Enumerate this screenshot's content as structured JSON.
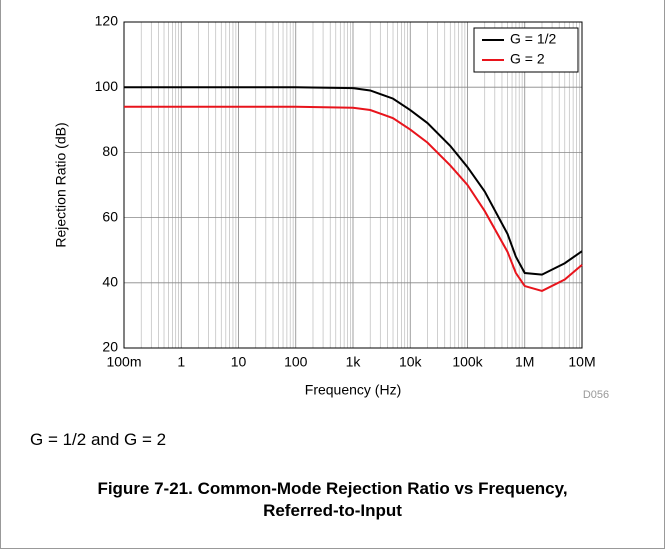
{
  "chart_data": {
    "type": "line",
    "y_label": "Rejection Ratio (dB)",
    "x_label": "Frequency (Hz)",
    "annotation": "D056",
    "x": [
      0.1,
      1,
      10,
      100,
      1000,
      2000,
      5000,
      10000,
      20000,
      50000,
      100000,
      200000,
      500000,
      700000,
      1000000,
      2000000,
      5000000,
      10000000
    ],
    "series": [
      {
        "name": "G = 1/2",
        "color": "#000000",
        "values": [
          100,
          100,
          100,
          100,
          99.7,
          99,
          96.5,
          93,
          89,
          82,
          75.5,
          68,
          55,
          48,
          43,
          42.5,
          46,
          49.7
        ]
      },
      {
        "name": "G = 2",
        "color": "#e8141c",
        "values": [
          94,
          94,
          94,
          94,
          93.7,
          93,
          90.5,
          87,
          83,
          76,
          70,
          62,
          49.5,
          43,
          39,
          37.5,
          41,
          45.5
        ]
      }
    ],
    "xscale": "log",
    "xlim": [
      0.1,
      10000000
    ],
    "xticks": [
      {
        "value": 0.1,
        "label": "100m"
      },
      1,
      10,
      100,
      {
        "value": 1000,
        "label": "1k"
      },
      {
        "value": 10000,
        "label": "10k"
      },
      {
        "value": 100000,
        "label": "100k"
      },
      {
        "value": 1000000,
        "label": "1M"
      },
      {
        "value": 10000000,
        "label": "10M"
      }
    ],
    "ylim": [
      20,
      120
    ],
    "yticks": [
      20,
      40,
      60,
      80,
      100,
      120
    ],
    "grid": true,
    "legend": "upper right"
  },
  "note": "G = 1/2 and G = 2",
  "caption": [
    "Figure 7-21. Common-Mode Rejection Ratio vs Frequency,",
    "Referred-to-Input"
  ]
}
